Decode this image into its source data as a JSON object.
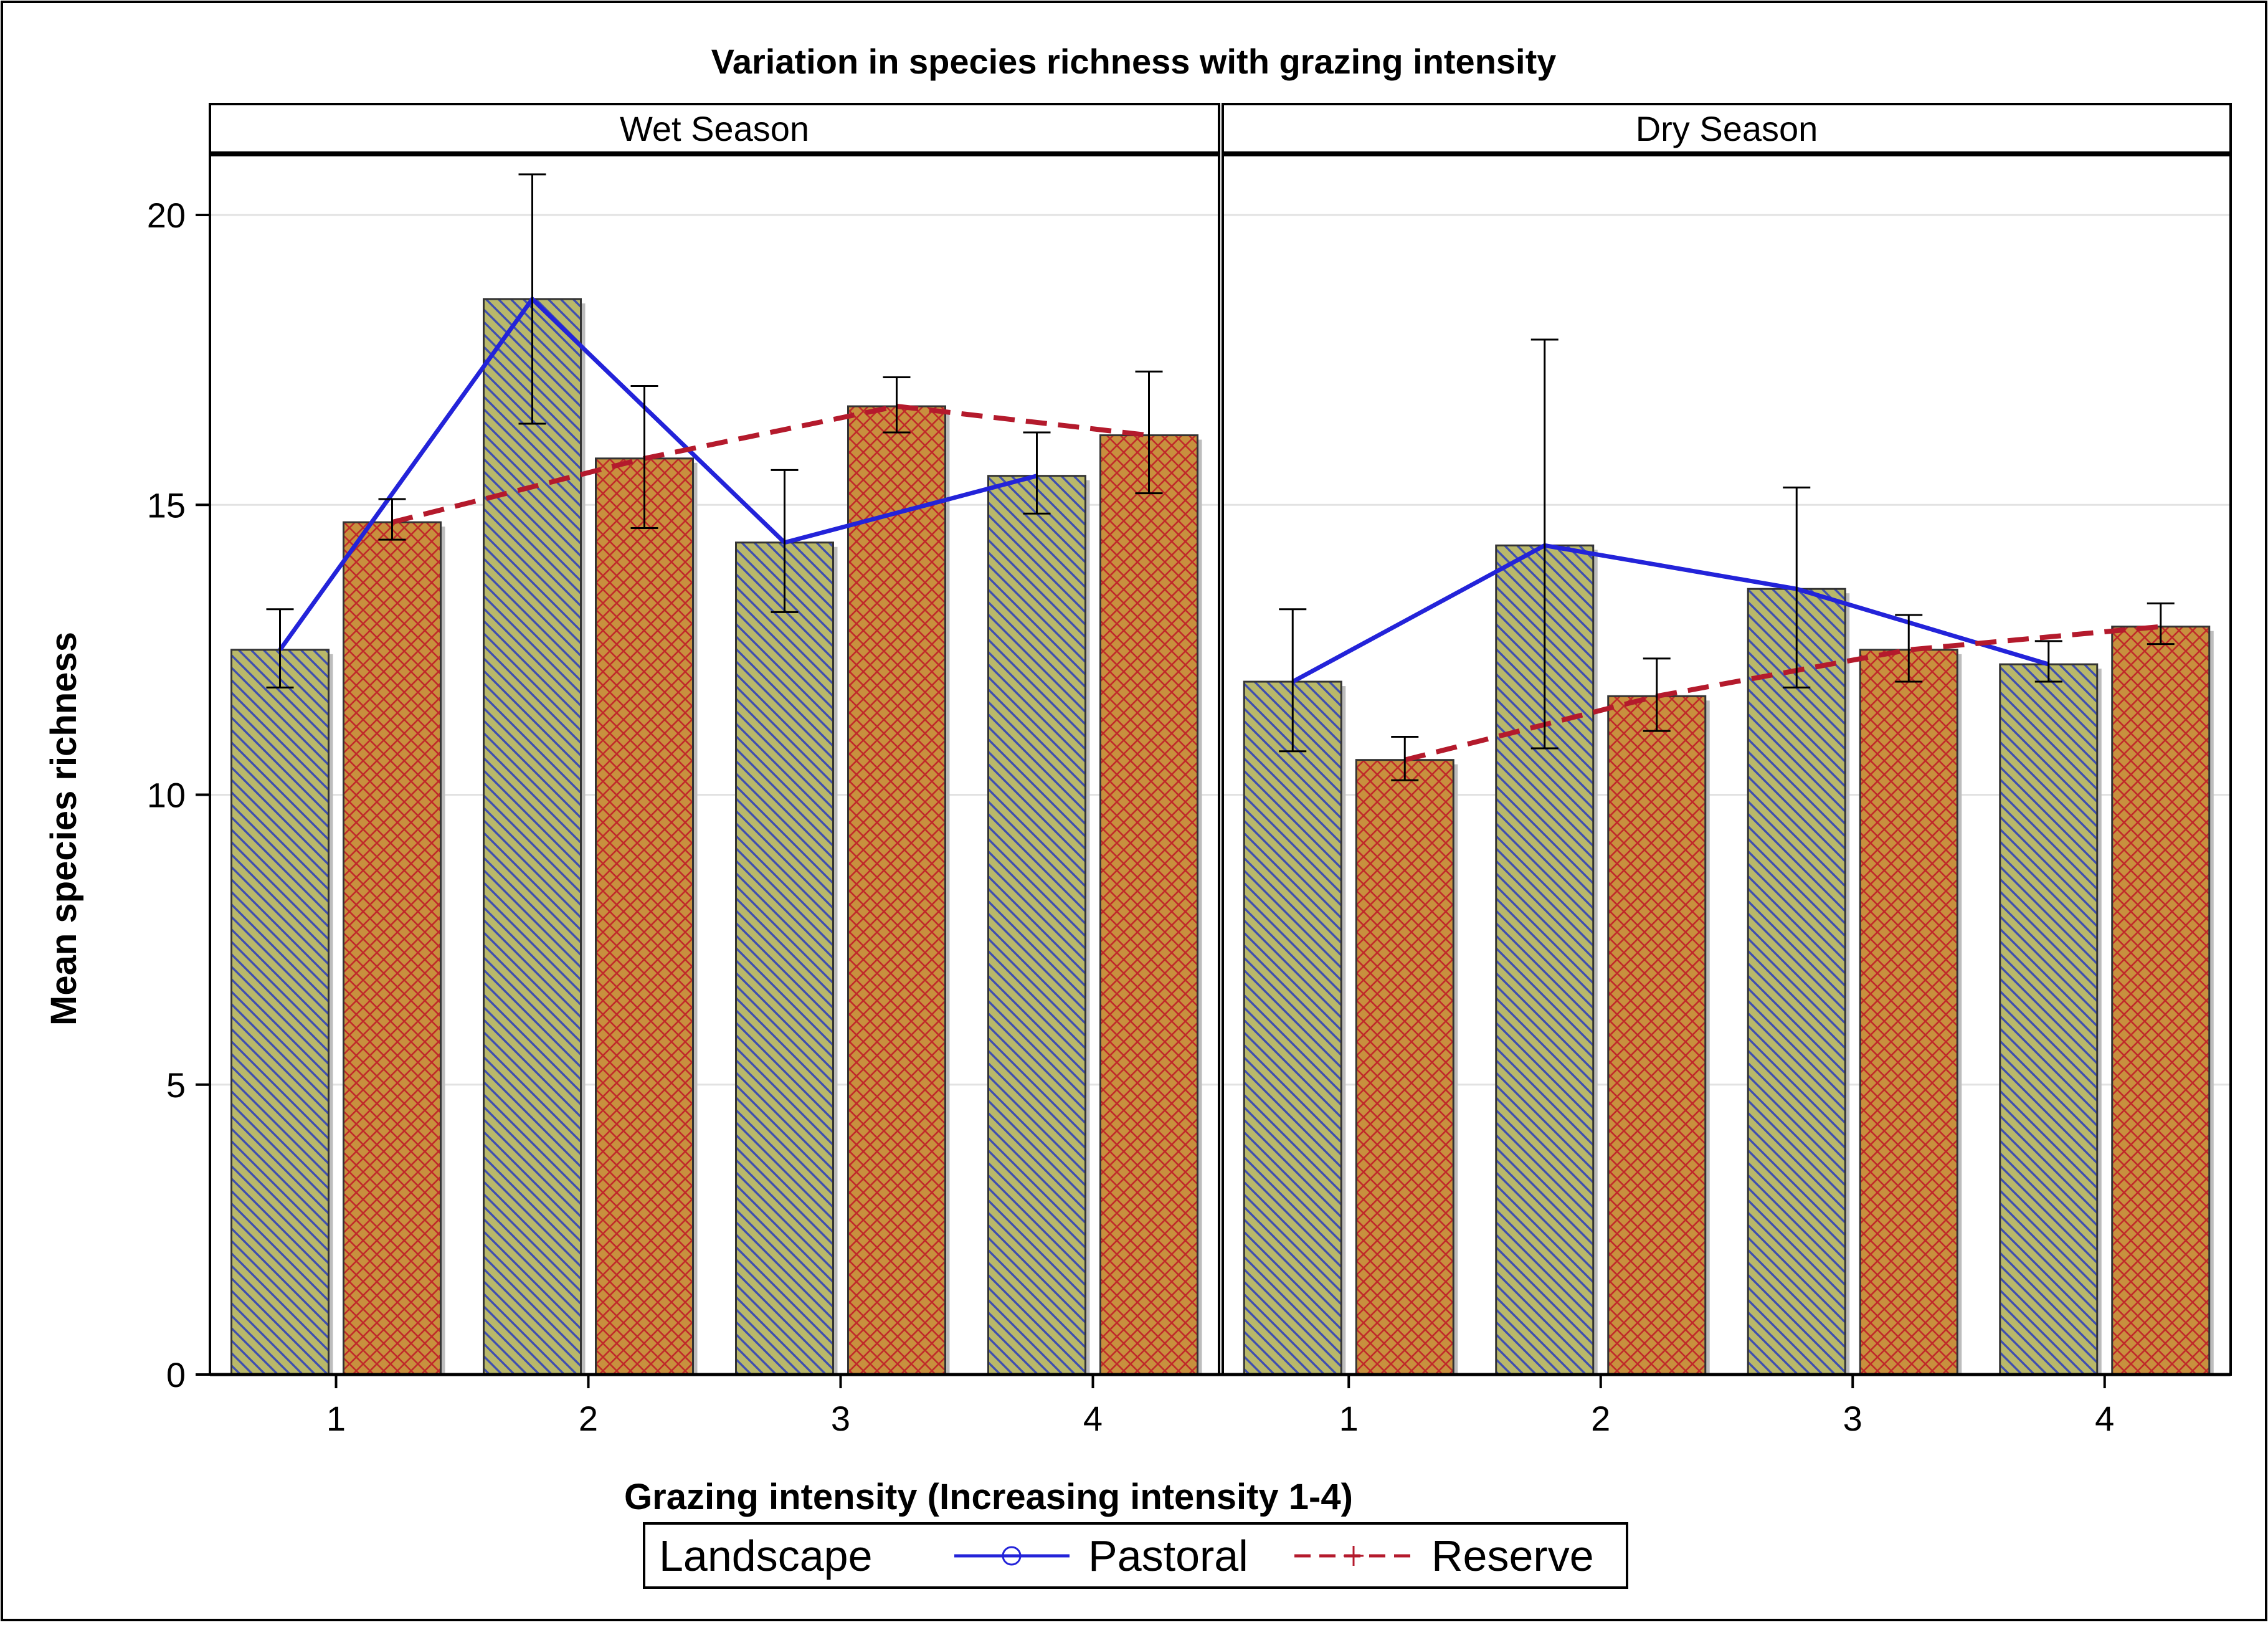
{
  "chart_data": {
    "type": "bar",
    "title": "Variation in species richness with grazing intensity",
    "xlabel": "Grazing intensity (Increasing intensity 1-4)",
    "ylabel": "Mean species richness",
    "ylim": [
      0,
      21
    ],
    "yticks": [
      0,
      5,
      10,
      15,
      20
    ],
    "grid": "horizontal",
    "categories": [
      "1",
      "2",
      "3",
      "4"
    ],
    "legend": {
      "title": "Landscape",
      "placement": "bottom"
    },
    "colors": {
      "pastoral_fill": "#b9b86a",
      "pastoral_hatch": "#3f4fb0",
      "reserve_fill": "#c8903e",
      "reserve_hatch": "#c02a2a",
      "pastoral_line": "#2323d9",
      "reserve_line": "#b41a2c",
      "gridline": "#e2e2e2"
    },
    "panels": [
      {
        "name": "Wet Season",
        "series": [
          {
            "name": "Pastoral",
            "values": [
              12.5,
              18.55,
              14.35,
              15.5
            ],
            "err_low": [
              11.85,
              16.4,
              13.15,
              14.85
            ],
            "err_high": [
              13.2,
              20.7,
              15.6,
              16.25
            ]
          },
          {
            "name": "Reserve",
            "values": [
              14.7,
              15.8,
              16.7,
              16.2
            ],
            "err_low": [
              14.4,
              14.6,
              16.25,
              15.2
            ],
            "err_high": [
              15.1,
              17.05,
              17.2,
              17.3
            ]
          }
        ]
      },
      {
        "name": "Dry  Season",
        "series": [
          {
            "name": "Pastoral",
            "values": [
              11.95,
              14.3,
              13.55,
              12.25
            ],
            "err_low": [
              10.75,
              10.8,
              11.85,
              11.95
            ],
            "err_high": [
              13.2,
              17.85,
              15.3,
              12.65
            ]
          },
          {
            "name": "Reserve",
            "values": [
              10.6,
              11.7,
              12.5,
              12.9
            ],
            "err_low": [
              10.25,
              11.1,
              11.95,
              12.6
            ],
            "err_high": [
              11.0,
              12.35,
              13.1,
              13.3
            ]
          }
        ]
      }
    ]
  }
}
